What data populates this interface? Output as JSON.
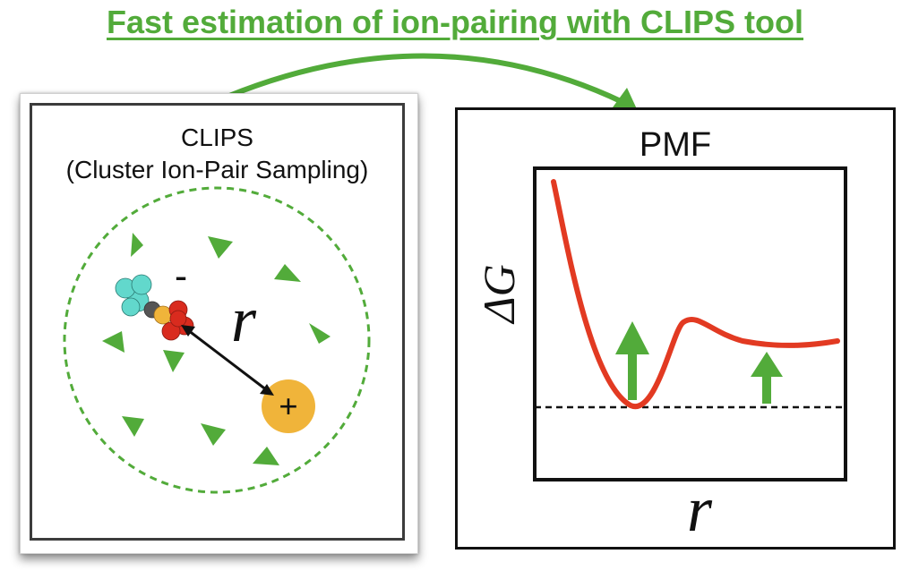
{
  "header": {
    "title": "Fast estimation of ion-pairing with CLIPS tool"
  },
  "left_panel": {
    "title_line1": "CLIPS",
    "title_line2": "(Cluster Ion-Pair Sampling)",
    "anion_sign": "-",
    "cation_sign": "+",
    "distance_label": "r"
  },
  "right_panel": {
    "title": "PMF",
    "y_label": "ΔG",
    "x_label": "r"
  },
  "colors": {
    "accent_green": "#52ab3a",
    "curve_red": "#e23a22",
    "cation_gold": "#f0b43a",
    "anion_red": "#d92b1e",
    "cyan_atoms": "#62d8cc"
  }
}
